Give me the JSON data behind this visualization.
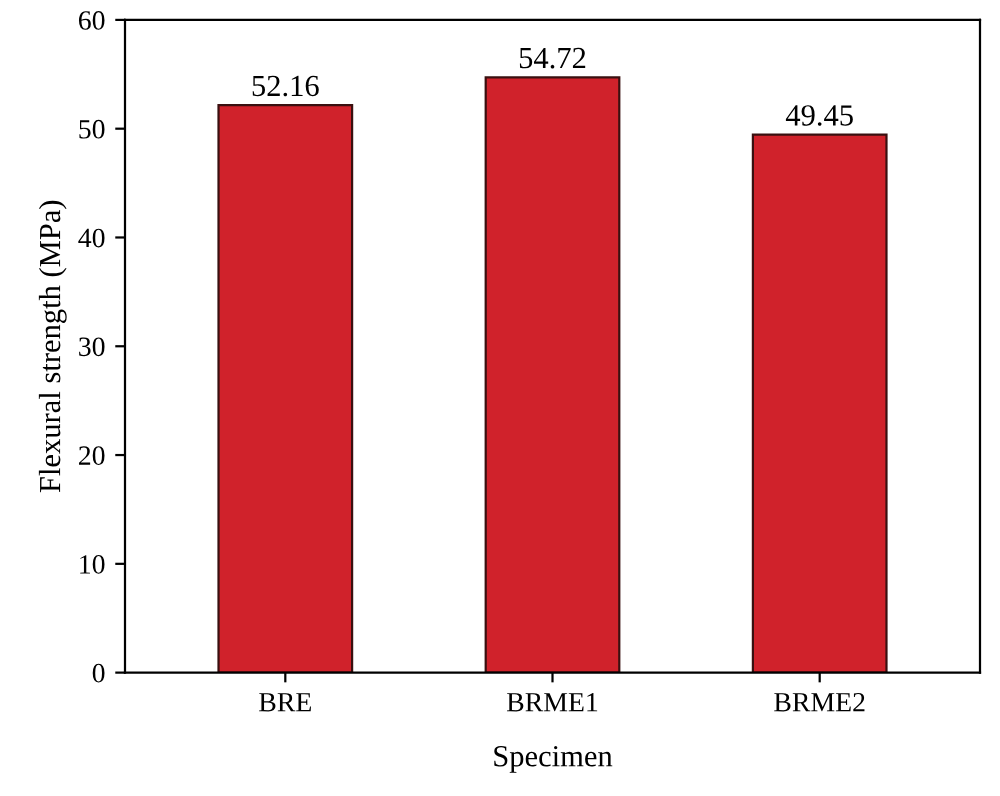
{
  "chart_data": {
    "type": "bar",
    "xlabel": "Specimen",
    "ylabel": "Flexural strength (MPa)",
    "categories": [
      "BRE",
      "BRME1",
      "BRME2"
    ],
    "values": [
      52.16,
      54.72,
      49.45
    ],
    "color": "#d0222b",
    "ylim": [
      0,
      60
    ],
    "yticks": [
      0,
      10,
      20,
      30,
      40,
      50,
      60
    ],
    "data_labels": true,
    "grid": false,
    "legend": false
  }
}
